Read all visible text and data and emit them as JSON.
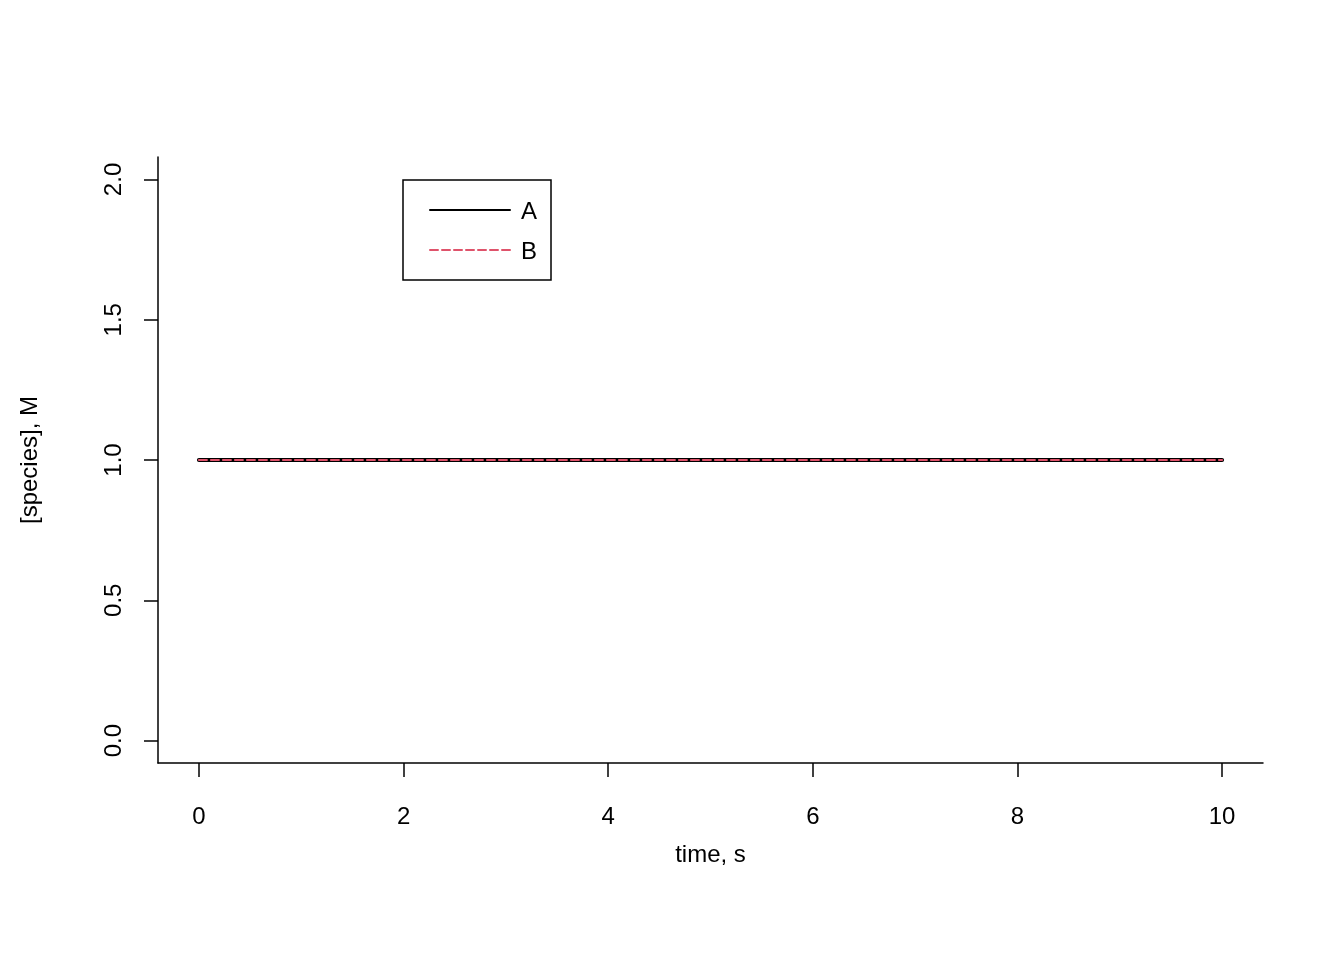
{
  "chart_data": {
    "type": "line",
    "xlabel": "time, s",
    "ylabel": "[species], M",
    "x": [
      0,
      10
    ],
    "series": [
      {
        "name": "A",
        "color": "#000000",
        "values": [
          1,
          1
        ],
        "line_style": "solid"
      },
      {
        "name": "B",
        "color": "#df536b",
        "values": [
          1,
          1
        ],
        "line_style": "dashed"
      }
    ],
    "xlim": [
      -0.4,
      10.4
    ],
    "xticks": [
      0,
      2,
      4,
      6,
      8,
      10
    ],
    "ylim": [
      -0.08,
      2.08
    ],
    "yticks": [
      {
        "value": 0,
        "label": "0.0"
      },
      {
        "value": 0.5,
        "label": "0.5"
      },
      {
        "value": 1,
        "label": "1.0"
      },
      {
        "value": 1.5,
        "label": "1.5"
      },
      {
        "value": 2,
        "label": "2.0"
      }
    ],
    "grid": false,
    "legend": "top left",
    "marker": "none"
  }
}
